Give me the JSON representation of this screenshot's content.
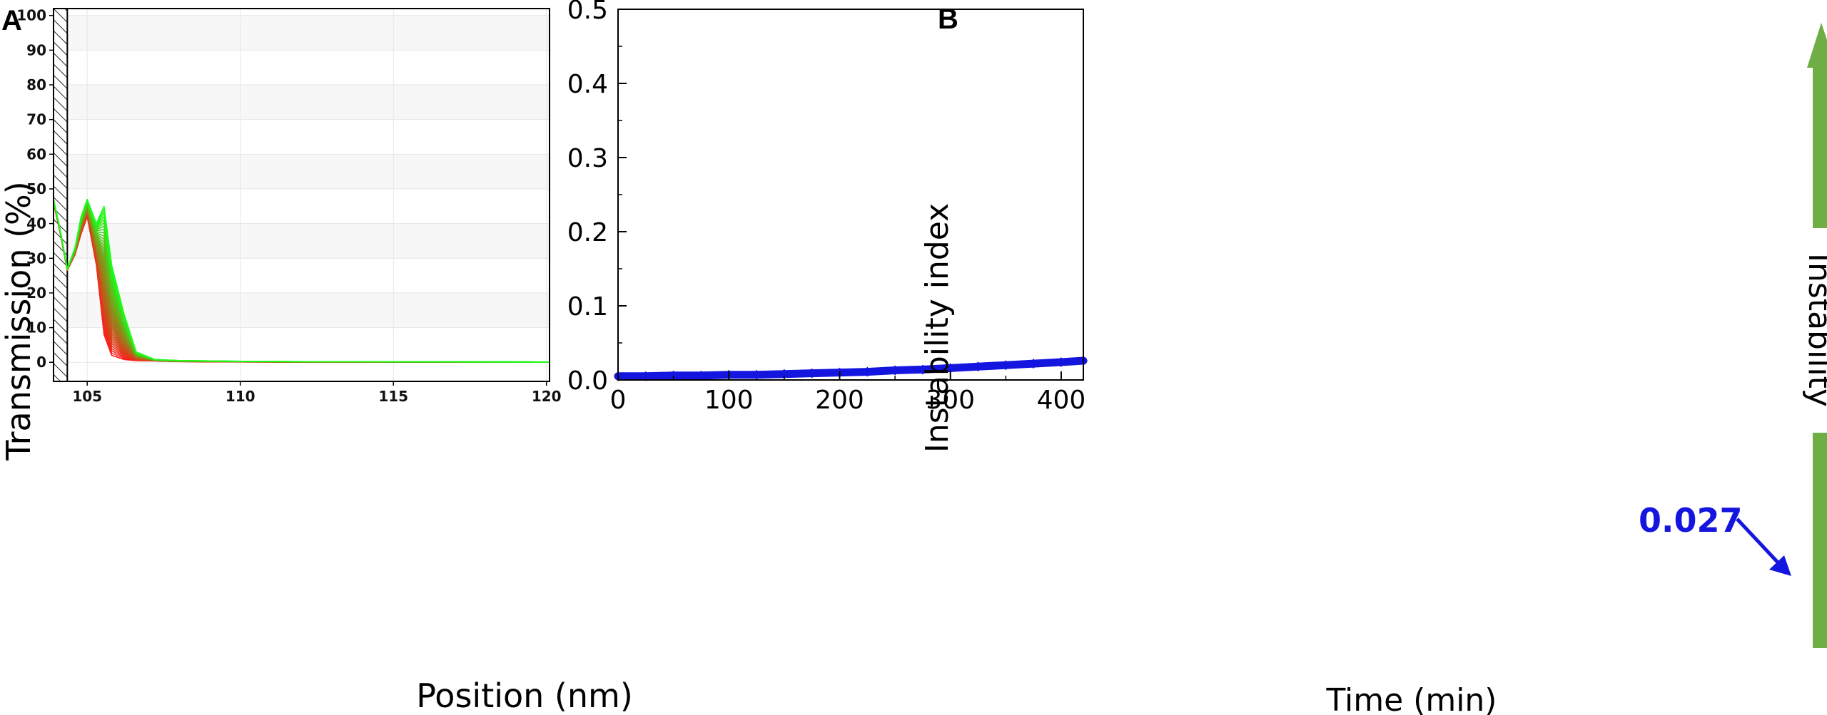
{
  "panels": {
    "a_label": "A",
    "b_label": "B"
  },
  "colors": {
    "early_profile": "#ff1a1a",
    "late_profile": "#1aff1a",
    "instability_series": "#1515e0",
    "arrow_green": "#6fae45"
  },
  "chart_data": [
    {
      "id": "A",
      "type": "line",
      "xlabel": "Position (nm)",
      "ylabel": "Transmission (%)",
      "xlim": [
        103.9,
        120.1
      ],
      "ylim": [
        -5.5,
        102
      ],
      "xticks": [
        105,
        110,
        115,
        120
      ],
      "yticks": [
        0,
        10,
        20,
        30,
        40,
        50,
        60,
        70,
        80,
        90,
        100
      ],
      "grid": true,
      "hatched_region_x": [
        103.9,
        104.35
      ],
      "profile_shape_x": [
        103.9,
        104.1,
        104.35,
        104.6,
        104.8,
        105.0,
        105.3,
        105.55,
        105.8,
        106.2,
        106.6,
        107.2,
        108.0,
        110.0,
        112.0,
        120.1
      ],
      "profile_first_y": [
        46,
        38,
        26.5,
        31,
        37,
        42,
        28,
        8,
        2,
        0.8,
        0.5,
        0.4,
        0.2,
        0.1,
        0.05,
        0.05
      ],
      "profile_last_y": [
        47,
        39,
        27,
        33,
        42,
        47,
        40,
        45,
        28,
        14,
        3,
        0.8,
        0.5,
        0.3,
        0.2,
        0.1
      ],
      "series_count": 40
    },
    {
      "id": "B",
      "type": "scatter",
      "xlabel": "Time (min)",
      "ylabel": "Instability index",
      "xlim": [
        0,
        420
      ],
      "ylim": [
        0,
        0.5
      ],
      "xticks": [
        0,
        100,
        200,
        300,
        400
      ],
      "yticks": [
        0.0,
        0.1,
        0.2,
        0.3,
        0.4,
        0.5
      ],
      "ytick_labels": [
        "0.0",
        "0.1",
        "0.2",
        "0.3",
        "0.4",
        "0.5"
      ],
      "grid": false,
      "series": [
        {
          "x": [
            0,
            25,
            50,
            75,
            100,
            125,
            150,
            175,
            200,
            225,
            250,
            275,
            300,
            325,
            350,
            375,
            400,
            420
          ],
          "y": [
            0.005,
            0.005,
            0.006,
            0.006,
            0.007,
            0.007,
            0.008,
            0.009,
            0.01,
            0.011,
            0.013,
            0.014,
            0.016,
            0.018,
            0.02,
            0.022,
            0.024,
            0.026
          ]
        }
      ],
      "annotation": {
        "text": "0.027"
      },
      "side_label": "Instability"
    }
  ]
}
